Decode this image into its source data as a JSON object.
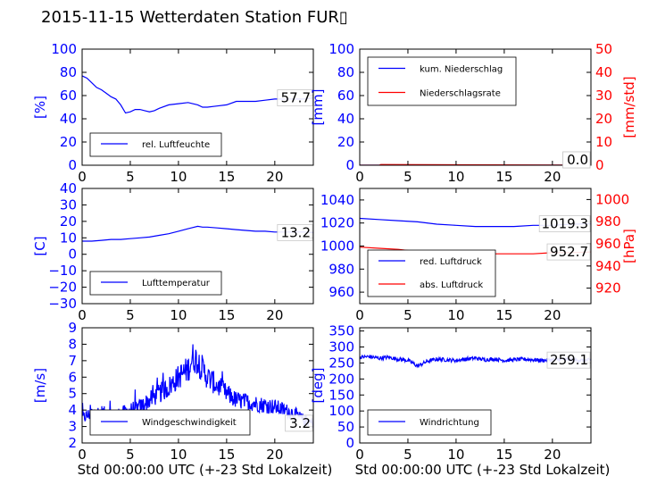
{
  "figure": {
    "title": "2015-11-15 Wetterdaten Station FUR▯",
    "xlabel": "Std 00:00:00 UTC (+-23 Std Lokalzeit)"
  },
  "colors": {
    "primary": "#0000ff",
    "secondary": "#ff0000",
    "axis": "#000000"
  },
  "chart_data": [
    {
      "type": "line",
      "panel": "humidity",
      "xlim": [
        0,
        24
      ],
      "ylim": [
        0,
        100
      ],
      "xticks": [
        "0",
        "5",
        "10",
        "15",
        "20"
      ],
      "yticks": [
        "0",
        "20",
        "40",
        "60",
        "80",
        "100"
      ],
      "ylabel": "[%]",
      "legend_position": "lower-left",
      "end_label": "57.7",
      "series": [
        {
          "name": "rel. Luftfeuchte",
          "color": "#0000ff",
          "x": [
            0,
            0.5,
            1,
            1.5,
            2,
            2.5,
            3,
            3.5,
            4,
            4.5,
            5,
            5.5,
            6,
            6.5,
            7,
            7.5,
            8,
            9,
            10,
            11,
            12,
            12.5,
            13,
            14,
            15,
            16,
            17,
            18,
            19,
            20,
            21,
            22,
            23,
            24
          ],
          "y": [
            77,
            75,
            71,
            67,
            65,
            62,
            59,
            57,
            52,
            45,
            46,
            48,
            48,
            47,
            46,
            47,
            49,
            52,
            53,
            54,
            52,
            50,
            50,
            51,
            52,
            55,
            55,
            55,
            56,
            57,
            57,
            57,
            57,
            58
          ]
        }
      ]
    },
    {
      "type": "line",
      "panel": "precipitation",
      "xlim": [
        0,
        24
      ],
      "ylim": [
        0,
        100
      ],
      "xticks": [
        "0",
        "5",
        "10",
        "15",
        "20"
      ],
      "yticks": [
        "0",
        "20",
        "40",
        "60",
        "80",
        "100"
      ],
      "ylabel": "[mm]",
      "y2lim": [
        0,
        50
      ],
      "y2ticks": [
        "0",
        "10",
        "20",
        "30",
        "40",
        "50"
      ],
      "y2label": "[mm/std]",
      "legend_position": "top-left",
      "end_labels": [
        "0.0",
        "0.0"
      ],
      "series": [
        {
          "name": "kum. Niederschlag",
          "color": "#0000ff",
          "axis": "left",
          "x": [
            0,
            24
          ],
          "y": [
            0,
            0
          ]
        },
        {
          "name": "Niederschlagsrate",
          "color": "#ff0000",
          "axis": "right",
          "x": [
            0,
            2,
            2.2,
            24
          ],
          "y": [
            0,
            0,
            0.3,
            0
          ]
        }
      ]
    },
    {
      "type": "line",
      "panel": "temperature",
      "xlim": [
        0,
        24
      ],
      "ylim": [
        -30,
        40
      ],
      "xticks": [
        "0",
        "5",
        "10",
        "15",
        "20"
      ],
      "yticks": [
        "−30",
        "−20",
        "−10",
        "0",
        "10",
        "20",
        "30",
        "40"
      ],
      "ylabel": "[C]",
      "legend_position": "lower-left",
      "end_label": "13.2",
      "series": [
        {
          "name": "Lufttemperatur",
          "color": "#0000ff",
          "x": [
            0,
            1,
            2,
            3,
            4,
            5,
            6,
            7,
            8,
            9,
            10,
            11,
            12,
            12.5,
            13,
            14,
            15,
            16,
            17,
            18,
            19,
            20,
            21,
            22,
            23,
            24
          ],
          "y": [
            8,
            8,
            8.5,
            9,
            9,
            9.5,
            10,
            10.5,
            11.5,
            12.5,
            14,
            15.5,
            17,
            16.5,
            16.5,
            16,
            15.5,
            15,
            14.5,
            14,
            14,
            13.5,
            13.5,
            13.5,
            13.5,
            13.2
          ]
        }
      ]
    },
    {
      "type": "line",
      "panel": "pressure",
      "xlim": [
        0,
        24
      ],
      "ylim": [
        950,
        1050
      ],
      "xticks": [
        "0",
        "5",
        "10",
        "15",
        "20"
      ],
      "yticks": [
        "960",
        "980",
        "1000",
        "1020",
        "1040"
      ],
      "y2lim": [
        906,
        1010
      ],
      "y2ticks": [
        "920",
        "940",
        "960",
        "980",
        "1000"
      ],
      "y2label": "[hPa]",
      "legend_position": "lower-left",
      "end_labels": [
        "1019.3",
        "952.7"
      ],
      "series": [
        {
          "name": "red. Luftdruck",
          "color": "#0000ff",
          "axis": "left",
          "x": [
            0,
            2,
            4,
            6,
            8,
            10,
            12,
            14,
            16,
            18,
            20,
            22,
            24
          ],
          "y": [
            1024,
            1023,
            1022,
            1021,
            1019,
            1018,
            1017,
            1017,
            1017,
            1018,
            1018,
            1019,
            1019.3
          ]
        },
        {
          "name": "abs. Luftdruck",
          "color": "#ff0000",
          "axis": "right",
          "x": [
            0,
            2,
            4,
            6,
            8,
            10,
            12,
            14,
            16,
            18,
            20,
            22,
            24
          ],
          "y": [
            957,
            956,
            955,
            953,
            952,
            951,
            951,
            951,
            951,
            951,
            952,
            952,
            952.7
          ]
        }
      ]
    },
    {
      "type": "line",
      "panel": "windspeed",
      "xlim": [
        0,
        24
      ],
      "ylim": [
        2,
        9
      ],
      "xticks": [
        "0",
        "5",
        "10",
        "15",
        "20"
      ],
      "yticks": [
        "2",
        "3",
        "4",
        "5",
        "6",
        "7",
        "8",
        "9"
      ],
      "ylabel": "[m/s]",
      "legend_position": "lower-center",
      "end_label": "3.2",
      "series": [
        {
          "name": "Windgeschwindigkeit",
          "color": "#0000ff",
          "x": [
            0,
            1,
            2,
            3,
            4,
            5,
            6,
            7,
            8,
            9,
            10,
            11,
            11.5,
            12,
            12.5,
            13,
            14,
            15,
            16,
            17,
            18,
            19,
            20,
            21,
            22,
            23,
            24
          ],
          "y": [
            3.5,
            3.8,
            3.9,
            3.6,
            3.8,
            4.0,
            4.2,
            4.6,
            5.0,
            5.4,
            6.0,
            6.5,
            7.2,
            7.0,
            6.5,
            6.0,
            5.5,
            5.0,
            4.6,
            4.5,
            4.4,
            4.3,
            4.2,
            4.0,
            3.8,
            3.4,
            3.2
          ],
          "noise_amplitude": 0.6
        }
      ]
    },
    {
      "type": "line",
      "panel": "winddirection",
      "xlim": [
        0,
        24
      ],
      "ylim": [
        0,
        360
      ],
      "xticks": [
        "0",
        "5",
        "10",
        "15",
        "20"
      ],
      "yticks": [
        "0",
        "50",
        "100",
        "150",
        "200",
        "250",
        "300",
        "350"
      ],
      "ylabel": "[deg]",
      "legend_position": "lower-left",
      "end_label": "259.1",
      "series": [
        {
          "name": "Windrichtung",
          "color": "#0000ff",
          "x": [
            0,
            1,
            2,
            3,
            4,
            5,
            5.5,
            6,
            7,
            8,
            9,
            10,
            11,
            12,
            13,
            14,
            15,
            16,
            17,
            18,
            19,
            20,
            21,
            22,
            23,
            24
          ],
          "y": [
            268,
            270,
            265,
            268,
            262,
            258,
            250,
            240,
            255,
            262,
            260,
            258,
            262,
            265,
            260,
            262,
            258,
            260,
            262,
            260,
            258,
            260,
            262,
            260,
            258,
            259
          ],
          "noise_amplitude": 6
        }
      ]
    }
  ]
}
